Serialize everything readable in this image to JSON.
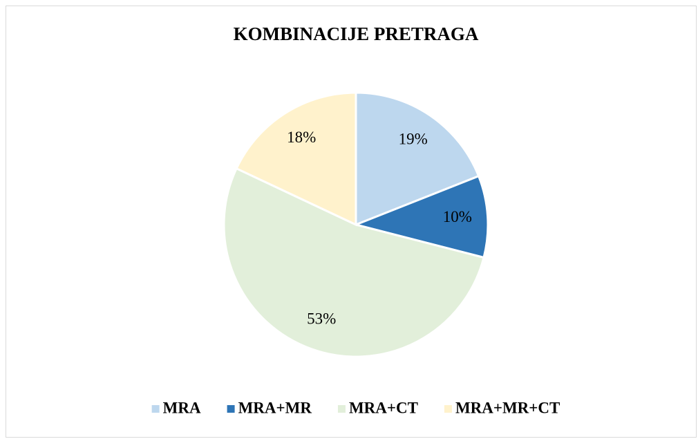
{
  "chart_data": {
    "type": "pie",
    "title": "KOMBINACIJE PRETRAGA",
    "categories": [
      "MRA",
      "MRA+MR",
      "MRA+CT",
      "MRA+MR+CT"
    ],
    "values": [
      19,
      10,
      53,
      18
    ],
    "value_labels": [
      "19%",
      "10%",
      "53%",
      "18%"
    ],
    "colors": [
      "#bdd7ee",
      "#2e75b6",
      "#e2efda",
      "#fff2cc"
    ],
    "legend": "bottom"
  }
}
